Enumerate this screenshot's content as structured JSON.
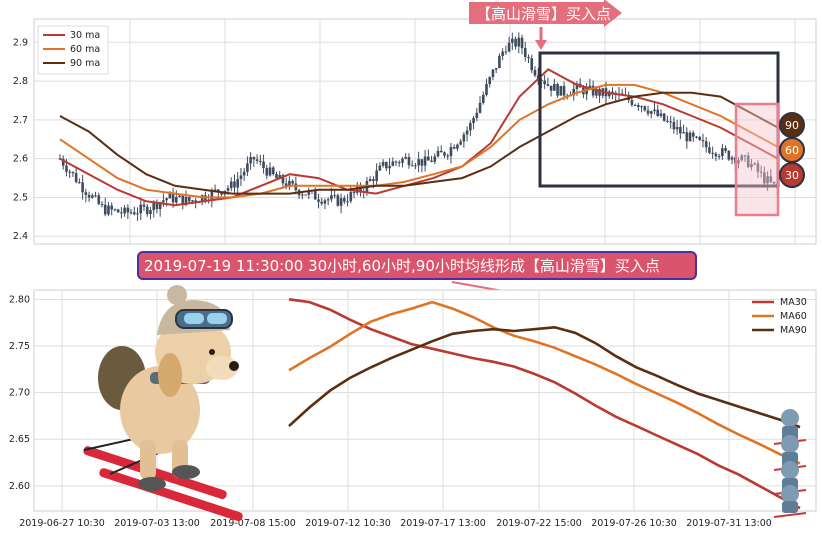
{
  "colors": {
    "ma30": "#b83a32",
    "ma60": "#e07426",
    "ma90": "#5b2e12",
    "candle": "#3f4b5e",
    "grid": "#dddddd",
    "annotation_bg": "#e46e7c",
    "mid_banner_bg": "#d9546c",
    "mid_banner_border": "#4b2fa0",
    "box": "#2d3242",
    "highlight": "#f0a0aa"
  },
  "top_annotation": "【高山滑雪】买入点",
  "mid_banner": "2019-07-19 11:30:00 30小时,60小时,90小时均线形成【高山滑雪】买入点",
  "badges": [
    "90",
    "60",
    "30"
  ],
  "chart_data": [
    {
      "type": "line",
      "panel": "top",
      "ylim": [
        2.38,
        2.96
      ],
      "yticks": [
        2.4,
        2.5,
        2.6,
        2.7,
        2.8,
        2.9
      ],
      "legend": {
        "placement": "top-left",
        "entries": [
          "30 ma",
          "60 ma",
          "90 ma"
        ]
      },
      "series": [
        {
          "name": "30 ma",
          "x": [
            0,
            4,
            8,
            12,
            16,
            20,
            24,
            28,
            32,
            36,
            40,
            44,
            48,
            52,
            56,
            60,
            64,
            68,
            72,
            76,
            80,
            84,
            88,
            92,
            96,
            100
          ],
          "values": [
            2.6,
            2.56,
            2.52,
            2.49,
            2.48,
            2.49,
            2.5,
            2.53,
            2.56,
            2.55,
            2.52,
            2.51,
            2.53,
            2.55,
            2.58,
            2.64,
            2.76,
            2.83,
            2.79,
            2.77,
            2.76,
            2.74,
            2.71,
            2.68,
            2.64,
            2.6
          ]
        },
        {
          "name": "60 ma",
          "x": [
            0,
            4,
            8,
            12,
            16,
            20,
            24,
            28,
            32,
            36,
            40,
            44,
            48,
            52,
            56,
            60,
            64,
            68,
            72,
            76,
            80,
            84,
            88,
            92,
            96,
            100
          ],
          "values": [
            2.65,
            2.6,
            2.55,
            2.52,
            2.51,
            2.5,
            2.5,
            2.51,
            2.53,
            2.53,
            2.53,
            2.53,
            2.54,
            2.56,
            2.58,
            2.63,
            2.7,
            2.74,
            2.77,
            2.79,
            2.79,
            2.77,
            2.74,
            2.71,
            2.67,
            2.63
          ]
        },
        {
          "name": "90 ma",
          "x": [
            0,
            4,
            8,
            12,
            16,
            20,
            24,
            28,
            32,
            36,
            40,
            44,
            48,
            52,
            56,
            60,
            64,
            68,
            72,
            76,
            80,
            84,
            88,
            92,
            96,
            100
          ],
          "values": [
            2.71,
            2.67,
            2.61,
            2.56,
            2.53,
            2.52,
            2.51,
            2.51,
            2.51,
            2.52,
            2.52,
            2.53,
            2.53,
            2.54,
            2.55,
            2.58,
            2.63,
            2.67,
            2.71,
            2.74,
            2.76,
            2.77,
            2.77,
            2.76,
            2.72,
            2.68
          ]
        }
      ],
      "price": {
        "x": [
          0,
          3,
          6,
          9,
          12,
          15,
          18,
          21,
          24,
          27,
          30,
          33,
          36,
          39,
          42,
          45,
          48,
          51,
          54,
          57,
          60,
          62,
          64,
          66,
          68,
          70,
          72,
          75,
          78,
          81,
          84,
          87,
          90,
          93,
          96,
          98,
          100
        ],
        "values": [
          2.6,
          2.53,
          2.47,
          2.46,
          2.47,
          2.5,
          2.49,
          2.51,
          2.53,
          2.6,
          2.55,
          2.52,
          2.5,
          2.49,
          2.52,
          2.58,
          2.6,
          2.59,
          2.62,
          2.68,
          2.81,
          2.89,
          2.9,
          2.83,
          2.79,
          2.77,
          2.78,
          2.77,
          2.76,
          2.74,
          2.7,
          2.66,
          2.63,
          2.61,
          2.59,
          2.55,
          2.52
        ]
      }
    },
    {
      "type": "line",
      "panel": "bottom",
      "ylim": [
        2.573,
        2.81
      ],
      "yticks": [
        2.6,
        2.65,
        2.7,
        2.75,
        2.8
      ],
      "xlabels": [
        "2019-06-27 10:30",
        "2019-07-03 13:00",
        "2019-07-08 15:00",
        "2019-07-12 10:30",
        "2019-07-17 13:00",
        "2019-07-22 15:00",
        "2019-07-26 10:30",
        "2019-07-31 13:00"
      ],
      "legend": {
        "placement": "top-right",
        "entries": [
          "MA30",
          "MA60",
          "MA90"
        ]
      },
      "series": [
        {
          "name": "MA30",
          "x": [
            0,
            4,
            8,
            12,
            16,
            20,
            24,
            28,
            32,
            36,
            40,
            44,
            48,
            52,
            56,
            60,
            64,
            68,
            72,
            76,
            80,
            84,
            88,
            92,
            96,
            100
          ],
          "values": [
            2.8,
            2.797,
            2.789,
            2.778,
            2.768,
            2.76,
            2.752,
            2.747,
            2.742,
            2.737,
            2.733,
            2.728,
            2.72,
            2.711,
            2.699,
            2.686,
            2.674,
            2.664,
            2.654,
            2.644,
            2.634,
            2.622,
            2.612,
            2.6,
            2.588,
            2.576
          ]
        },
        {
          "name": "MA60",
          "x": [
            0,
            4,
            8,
            12,
            16,
            20,
            24,
            28,
            32,
            36,
            40,
            44,
            48,
            52,
            56,
            60,
            64,
            68,
            72,
            76,
            80,
            84,
            88,
            92,
            96,
            100
          ],
          "values": [
            2.724,
            2.737,
            2.749,
            2.763,
            2.776,
            2.784,
            2.79,
            2.797,
            2.79,
            2.781,
            2.77,
            2.761,
            2.755,
            2.748,
            2.739,
            2.73,
            2.72,
            2.709,
            2.699,
            2.689,
            2.678,
            2.666,
            2.655,
            2.645,
            2.634,
            2.624
          ]
        },
        {
          "name": "MA90",
          "x": [
            0,
            4,
            8,
            12,
            16,
            20,
            24,
            28,
            32,
            36,
            40,
            44,
            48,
            52,
            56,
            60,
            64,
            68,
            72,
            76,
            80,
            84,
            88,
            92,
            96,
            100
          ],
          "values": [
            2.664,
            2.684,
            2.702,
            2.716,
            2.727,
            2.737,
            2.746,
            2.755,
            2.763,
            2.766,
            2.768,
            2.766,
            2.768,
            2.77,
            2.764,
            2.753,
            2.739,
            2.727,
            2.718,
            2.708,
            2.699,
            2.692,
            2.685,
            2.678,
            2.671,
            2.663
          ]
        }
      ]
    }
  ]
}
